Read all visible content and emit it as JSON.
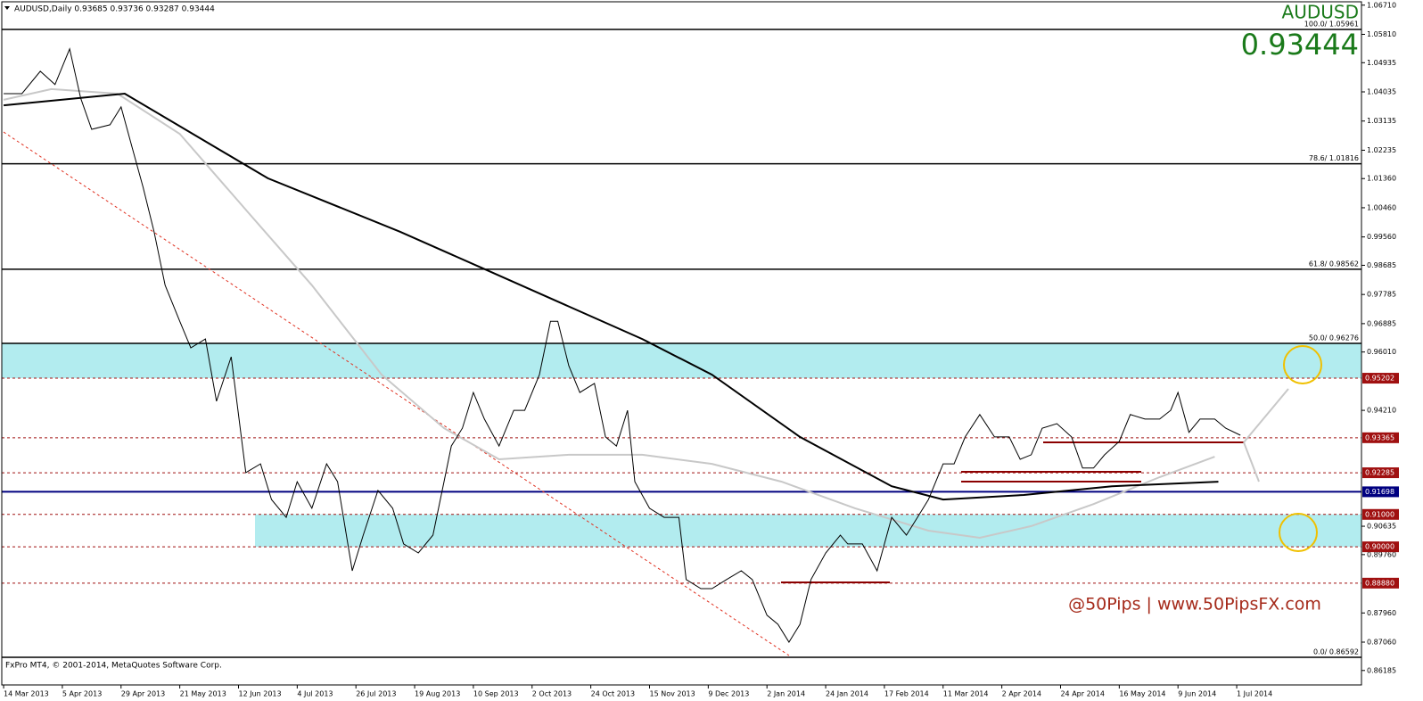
{
  "chart_data": {
    "type": "line",
    "title": "AUDUSD,Daily  0.93685 0.93736 0.93287 0.93444",
    "symbol": "AUDUSD",
    "quote": "0.93444",
    "footer": "FxPro MT4, © 2001-2014, MetaQuotes Software Corp.",
    "watermark": "@50Pips | www.50PipsFX.com",
    "xlim": [
      -0.5,
      370
    ],
    "ylim": [
      0.85739,
      1.06814
    ],
    "xticks": [
      {
        "value": 0,
        "label": "14 Mar 2013"
      },
      {
        "value": 16,
        "label": "5 Apr 2013"
      },
      {
        "value": 32,
        "label": "29 Apr 2013"
      },
      {
        "value": 48,
        "label": "21 May 2013"
      },
      {
        "value": 64,
        "label": "12 Jun 2013"
      },
      {
        "value": 80,
        "label": "4 Jul 2013"
      },
      {
        "value": 96,
        "label": "26 Jul 2013"
      },
      {
        "value": 112,
        "label": "19 Aug 2013"
      },
      {
        "value": 128,
        "label": "10 Sep 2013"
      },
      {
        "value": 144,
        "label": "2 Oct 2013"
      },
      {
        "value": 160,
        "label": "24 Oct 2013"
      },
      {
        "value": 176,
        "label": "15 Nov 2013"
      },
      {
        "value": 192,
        "label": "9 Dec 2013"
      },
      {
        "value": 208,
        "label": "2 Jan 2014"
      },
      {
        "value": 224,
        "label": "24 Jan 2014"
      },
      {
        "value": 240,
        "label": "17 Feb 2014"
      },
      {
        "value": 256,
        "label": "11 Mar 2014"
      },
      {
        "value": 272,
        "label": "2 Apr 2014"
      },
      {
        "value": 288,
        "label": "24 Apr 2014"
      },
      {
        "value": 304,
        "label": "16 May 2014"
      },
      {
        "value": 320,
        "label": "9 Jun 2014"
      },
      {
        "value": 336,
        "label": "1 Jul 2014"
      }
    ],
    "yticks": [
      {
        "value": 1.0671,
        "label": "1.06710"
      },
      {
        "value": 1.0581,
        "label": "1.05810"
      },
      {
        "value": 1.04935,
        "label": "1.04935"
      },
      {
        "value": 1.04035,
        "label": "1.04035"
      },
      {
        "value": 1.03135,
        "label": "1.03135"
      },
      {
        "value": 1.02235,
        "label": "1.02235"
      },
      {
        "value": 1.0136,
        "label": "1.01360"
      },
      {
        "value": 1.0046,
        "label": "1.00460"
      },
      {
        "value": 0.9956,
        "label": "0.99560"
      },
      {
        "value": 0.98685,
        "label": "0.98685"
      },
      {
        "value": 0.97785,
        "label": "0.97785"
      },
      {
        "value": 0.96885,
        "label": "0.96885"
      },
      {
        "value": 0.9601,
        "label": "0.96010"
      },
      {
        "value": 0.9421,
        "label": "0.94210"
      },
      {
        "value": 0.90635,
        "label": "0.90635"
      },
      {
        "value": 0.8976,
        "label": "0.89760"
      },
      {
        "value": 0.8796,
        "label": "0.87960"
      },
      {
        "value": 0.8706,
        "label": "0.87060"
      },
      {
        "value": 0.86185,
        "label": "0.86185"
      }
    ],
    "fib_levels": [
      {
        "value": 1.05961,
        "label": "100.0/ 1.05961"
      },
      {
        "value": 1.01816,
        "label": "78.6/ 1.01816"
      },
      {
        "value": 0.98562,
        "label": "61.8/ 0.98562"
      },
      {
        "value": 0.96276,
        "label": "50.0/ 0.96276"
      },
      {
        "value": 0.86592,
        "label": "0.0/ 0.86592"
      }
    ],
    "levels": [
      {
        "value": 0.95202,
        "label": "0.95202",
        "color": "#a01010"
      },
      {
        "value": 0.93365,
        "label": "0.93365",
        "color": "#a01010"
      },
      {
        "value": 0.92285,
        "label": "0.92285",
        "color": "#a01010"
      },
      {
        "value": 0.91698,
        "label": "0.91698",
        "color": "#000080"
      },
      {
        "value": 0.91,
        "label": "0.91000",
        "color": "#a01010"
      },
      {
        "value": 0.9,
        "label": "0.90000",
        "color": "#a01010"
      },
      {
        "value": 0.8888,
        "label": "0.88880",
        "color": "#a01010"
      }
    ],
    "zones": [
      {
        "from": 0.95202,
        "to": 0.96276,
        "color": "#b2ecef"
      },
      {
        "from": 0.9,
        "to": 0.91,
        "x_from": 68.5,
        "color": "#b2ecef"
      }
    ],
    "series": [
      {
        "color": "#000000",
        "width": 1,
        "x": [
          0,
          5,
          10,
          14,
          18,
          21,
          24,
          29,
          32,
          35,
          38,
          41,
          44,
          48,
          51,
          55,
          58,
          62,
          66,
          70,
          73,
          77,
          80,
          84,
          88,
          91,
          95,
          98,
          102,
          106,
          109,
          113,
          117,
          120,
          122,
          125,
          128,
          131,
          135,
          139,
          142,
          146,
          149,
          151,
          154,
          157,
          161,
          164,
          167,
          170,
          172,
          176,
          180,
          184,
          186,
          190,
          193,
          197,
          201,
          204,
          208,
          211,
          214,
          217,
          220,
          224,
          228,
          230,
          234,
          238,
          242,
          246,
          249,
          252,
          256,
          259,
          262,
          266,
          270,
          274,
          277,
          280,
          283,
          287,
          291,
          294,
          297,
          300,
          304,
          307,
          311,
          315,
          318,
          320,
          323,
          326,
          330,
          333,
          337
        ],
        "values": [
          1.0398,
          1.0398,
          1.0467,
          1.0426,
          1.0536,
          1.0384,
          1.0288,
          1.0302,
          1.0357,
          1.0233,
          1.0109,
          0.9972,
          0.9807,
          0.9696,
          0.9614,
          0.9641,
          0.9449,
          0.9586,
          0.9229,
          0.9256,
          0.9146,
          0.9091,
          0.9201,
          0.9119,
          0.9256,
          0.9201,
          0.8926,
          0.9036,
          0.9174,
          0.9119,
          0.9009,
          0.8981,
          0.9036,
          0.9201,
          0.9311,
          0.9366,
          0.9476,
          0.9394,
          0.9311,
          0.9421,
          0.9421,
          0.9531,
          0.9696,
          0.9696,
          0.9559,
          0.9476,
          0.9504,
          0.9339,
          0.9311,
          0.9421,
          0.9201,
          0.9119,
          0.9091,
          0.9091,
          0.8899,
          0.8871,
          0.8871,
          0.8899,
          0.8926,
          0.8899,
          0.8789,
          0.8761,
          0.8706,
          0.8761,
          0.8899,
          0.8981,
          0.9036,
          0.9009,
          0.9009,
          0.8926,
          0.9091,
          0.9036,
          0.9091,
          0.9146,
          0.9256,
          0.9256,
          0.9339,
          0.9408,
          0.9339,
          0.9339,
          0.927,
          0.9284,
          0.9366,
          0.938,
          0.9339,
          0.9243,
          0.9243,
          0.9284,
          0.9325,
          0.9408,
          0.9394,
          0.9394,
          0.9421,
          0.9476,
          0.9353,
          0.9394,
          0.9394,
          0.9366,
          0.93444
        ]
      },
      {
        "color": "#000000",
        "width": 2,
        "x": [
          0,
          33,
          72,
          108,
          130,
          174,
          193,
          217,
          242,
          256,
          278,
          302,
          331
        ],
        "values": [
          1.0362,
          1.0398,
          1.0137,
          0.9972,
          0.9862,
          0.9641,
          0.9531,
          0.9339,
          0.9187,
          0.9146,
          0.916,
          0.9187,
          0.9201
        ]
      },
      {
        "color": "#c8c8c8",
        "width": 2,
        "x": [
          0,
          13,
          31,
          48,
          67,
          84,
          103,
          120,
          135,
          154,
          174,
          193,
          212,
          232,
          252,
          266,
          280,
          297,
          315,
          330
        ],
        "values": [
          1.0379,
          1.0412,
          1.0398,
          1.0274,
          1.0027,
          0.9807,
          0.9531,
          0.9366,
          0.927,
          0.9284,
          0.9284,
          0.9256,
          0.9201,
          0.9119,
          0.905,
          0.9028,
          0.9064,
          0.9132,
          0.9215,
          0.9278
        ]
      }
    ]
  }
}
